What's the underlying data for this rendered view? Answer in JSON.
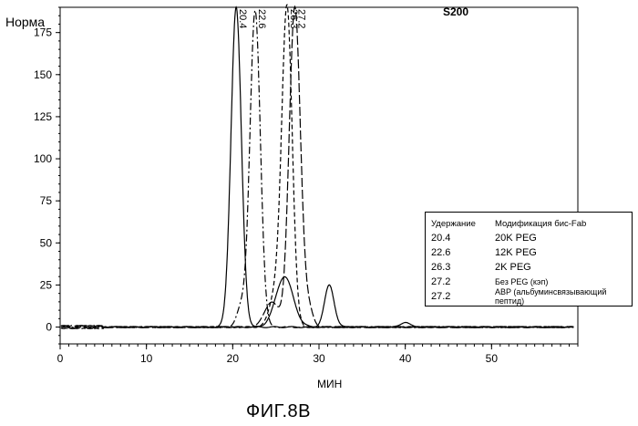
{
  "y_title": "Норма",
  "plot_title": "S200",
  "x_title": "МИН",
  "caption": "ФИГ.8В",
  "legend": {
    "header_retention": "Удержание",
    "header_modification": "Модификация бис-Fab",
    "rows": [
      {
        "retention": "20.4",
        "modification": "20K PEG"
      },
      {
        "retention": "22.6",
        "modification": "12K PEG"
      },
      {
        "retention": "26.3",
        "modification": "2K PEG"
      },
      {
        "retention": "27.2",
        "modification": "Без PEG (кэп)"
      },
      {
        "retention": "27.2",
        "modification": "ABP (альбуминсвязывающий пептид)"
      }
    ]
  },
  "chart_data": {
    "type": "line",
    "title": "S200",
    "xlabel": "МИН",
    "ylabel": "Норма",
    "xlim": [
      0,
      60
    ],
    "ylim": [
      -10,
      190
    ],
    "x_ticks": [
      0,
      10,
      20,
      30,
      40,
      50
    ],
    "y_ticks": [
      0,
      25,
      50,
      75,
      100,
      125,
      150,
      175
    ],
    "peak_labels": [
      "20.4",
      "22.6",
      "26.3",
      "27.2"
    ],
    "series": [
      {
        "name": "20K PEG",
        "peaks": [
          {
            "x": 20.4,
            "y": 190,
            "width": 0.6
          }
        ]
      },
      {
        "name": "12K PEG",
        "peaks": [
          {
            "x": 22.6,
            "y": 188,
            "width": 0.6
          },
          {
            "x": 21.0,
            "y": 12,
            "width": 0.5
          }
        ]
      },
      {
        "name": "2K PEG",
        "peaks": [
          {
            "x": 26.3,
            "y": 188,
            "width": 0.6
          },
          {
            "x": 25.0,
            "y": 20,
            "width": 0.7
          }
        ]
      },
      {
        "name": "Без PEG (кэп)",
        "peaks": [
          {
            "x": 27.2,
            "y": 190,
            "width": 0.65
          },
          {
            "x": 24.5,
            "y": 15,
            "width": 0.8
          },
          {
            "x": 28.8,
            "y": 10,
            "width": 0.5
          }
        ]
      },
      {
        "name": "ABP (альбуминсвязывающий пептид)",
        "peaks": [
          {
            "x": 31.2,
            "y": 25,
            "width": 0.55
          },
          {
            "x": 26.0,
            "y": 30,
            "width": 1.0
          },
          {
            "x": 40.0,
            "y": 3,
            "width": 0.5
          }
        ]
      }
    ]
  }
}
